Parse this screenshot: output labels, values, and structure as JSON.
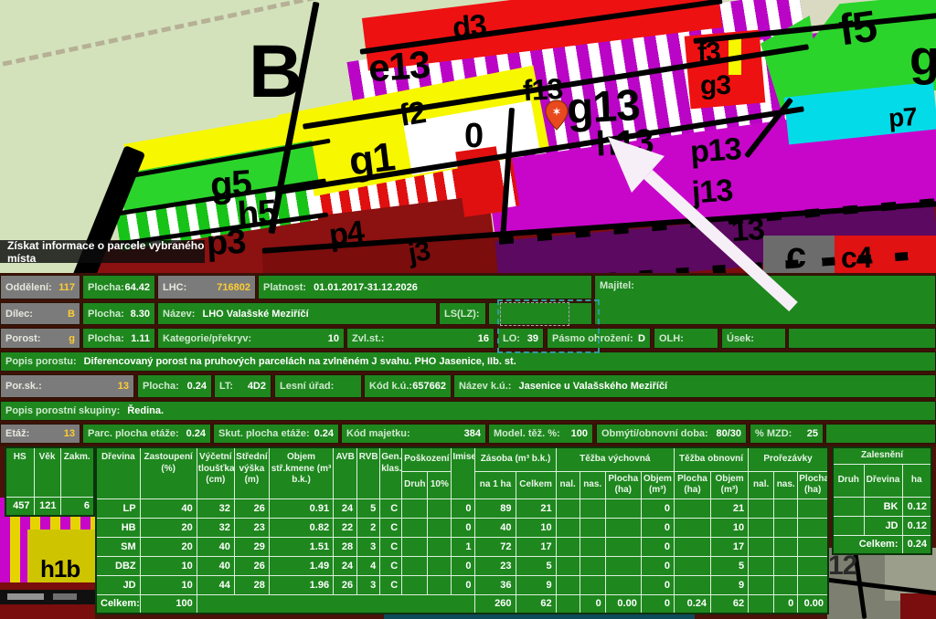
{
  "colors": {
    "panel_green": "#1e871e",
    "cell_grey": "#7b7b7b",
    "value_yellow": "#ffcc33",
    "magenta": "#c806ca",
    "map_yellow": "#f7f700",
    "map_red": "#ee1111",
    "map_bright_green": "#2bd42b",
    "map_cyan": "#04dbe8",
    "map_dark_red": "#8c1111",
    "arrow_white": "#f7eff7"
  },
  "tooltip": {
    "text": "Získat informace o parcele vybraného místa"
  },
  "map": {
    "labels": {
      "slash": "/",
      "b": "B",
      "d3": "d3",
      "e13": "e13",
      "f2": "f2",
      "f13": "f13",
      "g13": "g13",
      "h13": "h13",
      "g1": "g1",
      "zero": "0",
      "g5": "g5",
      "h5": "h5",
      "p3": "p3",
      "p4": "p4",
      "j3": "j3",
      "p13": "p13",
      "j13": "j13",
      "x13": "13",
      "f3": "f3",
      "g3": "g3",
      "f5": "f5",
      "g_right": "g",
      "p7": "p7",
      "c": "c",
      "c4": "c4",
      "h1b": "h1b",
      "n12": "12"
    }
  },
  "panel": {
    "oddeleni": {
      "label": "Oddělení:",
      "value": "117"
    },
    "plocha1": {
      "label": "Plocha:",
      "value": "64.42"
    },
    "lhc": {
      "label": "LHC:",
      "value": "716802"
    },
    "platnost": {
      "label": "Platnost:",
      "value": "01.01.2017-31.12.2026"
    },
    "majitel": {
      "label": "Majitel:",
      "value": ""
    },
    "dilec": {
      "label": "Dílec:",
      "value": "B"
    },
    "plocha2": {
      "label": "Plocha:",
      "value": "8.30"
    },
    "nazev": {
      "label": "Název:",
      "value": "LHO Valašské Meziříčí"
    },
    "lslz": {
      "label": "LS(LZ):",
      "value": ""
    },
    "porost": {
      "label": "Porost:",
      "value": "g"
    },
    "plocha3": {
      "label": "Plocha:",
      "value": "1.11"
    },
    "kategorie": {
      "label": "Kategorie/překryv:",
      "value": "10"
    },
    "zvlst": {
      "label": "Zvl.st.:",
      "value": "16"
    },
    "lo": {
      "label": "LO:",
      "value": "39"
    },
    "pasmo": {
      "label": "Pásmo ohrožení:",
      "value": "D"
    },
    "olh": {
      "label": "OLH:",
      "value": ""
    },
    "usek": {
      "label": "Úsek:",
      "value": ""
    },
    "popis_porostu": {
      "label": "Popis porostu:",
      "value": "Diferencovaný porost na pruhových parcelách na zvlněném J svahu. PHO Jasenice, IIb. st."
    },
    "porsk": {
      "label": "Por.sk.:",
      "value": "13"
    },
    "plocha5": {
      "label": "Plocha:",
      "value": "0.24"
    },
    "lt": {
      "label": "LT:",
      "value": "4D2"
    },
    "lesni_urad": {
      "label": "Lesní úřad:",
      "value": ""
    },
    "kod_ku": {
      "label": "Kód k.ú.:",
      "value": "657662"
    },
    "nazev_ku": {
      "label": "Název k.ú.:",
      "value": "Jasenice u Valašského Meziříčí"
    },
    "popis_skupiny": {
      "label": "Popis porostní skupiny:",
      "value": "Ředina."
    },
    "etaz": {
      "label": "Etáž:",
      "value": "13"
    },
    "parc_plocha": {
      "label": "Parc. plocha etáže:",
      "value": "0.24"
    },
    "skut_plocha": {
      "label": "Skut. plocha etáže:",
      "value": "0.24"
    },
    "kod_majetku": {
      "label": "Kód majetku:",
      "value": "384"
    },
    "model_tez": {
      "label": "Model. těž. %:",
      "value": "100"
    },
    "obmyti": {
      "label": "Obmýtí/obnovní doba:",
      "value": "80/30"
    },
    "mzd": {
      "label": "% MZD:",
      "value": "25"
    }
  },
  "miniTable": {
    "headers": [
      "HS",
      "Věk",
      "Zakm."
    ],
    "row": [
      "457",
      "121",
      "6"
    ]
  },
  "mainTable": {
    "h1": {
      "drevina": "Dřevina",
      "zastoupeni": "Zastoupení (%)",
      "vycetni": "Výčetní tloušťka (cm)",
      "stredni": "Střední výška (m)",
      "objem": "Objem stř.kmene (m³ b.k.)",
      "avb": "AVB",
      "rvb": "RVB",
      "gen": "Gen. klas.",
      "poskozeni": "Poškození",
      "imise": "Imise",
      "zasoba": "Zásoba (m³ b.k.)",
      "tezba_vychovna": "Těžba výchovná",
      "tezba_obnovni": "Těžba obnovní",
      "prorezavky": "Prořezávky"
    },
    "h2": {
      "druh": "Druh",
      "pct": "10%",
      "na1ha": "na 1 ha",
      "celkem": "Celkem",
      "nal": "nal.",
      "nas": "nas.",
      "plocha_ha": "Plocha (ha)",
      "objem_m3": "Objem (m³)"
    },
    "rows": [
      [
        "LP",
        "40",
        "32",
        "26",
        "0.91",
        "24",
        "5",
        "C",
        "",
        "",
        "0",
        "89",
        "21",
        "",
        "",
        "",
        "0",
        "",
        "21",
        "",
        "",
        ""
      ],
      [
        "HB",
        "20",
        "32",
        "23",
        "0.82",
        "22",
        "2",
        "C",
        "",
        "",
        "0",
        "40",
        "10",
        "",
        "",
        "",
        "0",
        "",
        "10",
        "",
        "",
        ""
      ],
      [
        "SM",
        "20",
        "40",
        "29",
        "1.51",
        "28",
        "3",
        "C",
        "",
        "",
        "1",
        "72",
        "17",
        "",
        "",
        "",
        "0",
        "",
        "17",
        "",
        "",
        ""
      ],
      [
        "DBZ",
        "10",
        "40",
        "26",
        "1.49",
        "24",
        "4",
        "C",
        "",
        "",
        "0",
        "23",
        "5",
        "",
        "",
        "",
        "0",
        "",
        "5",
        "",
        "",
        ""
      ],
      [
        "JD",
        "10",
        "44",
        "28",
        "1.96",
        "26",
        "3",
        "C",
        "",
        "",
        "0",
        "36",
        "9",
        "",
        "",
        "",
        "0",
        "",
        "9",
        "",
        "",
        ""
      ],
      [
        "Celkem:",
        "100",
        "",
        "",
        "",
        "",
        "",
        "",
        "",
        "",
        "",
        "260",
        "62",
        "",
        "0",
        "0.00",
        "0",
        "0.24",
        "62",
        "",
        "0",
        "0.00"
      ]
    ]
  },
  "zalesneni": {
    "title": "Zalesnění",
    "headers": [
      "Druh",
      "Dřevina",
      "ha"
    ],
    "rows": [
      [
        "",
        "BK",
        "0.12"
      ],
      [
        "",
        "JD",
        "0.12"
      ]
    ],
    "total_label": "Celkem:",
    "total_value": "0.24"
  }
}
